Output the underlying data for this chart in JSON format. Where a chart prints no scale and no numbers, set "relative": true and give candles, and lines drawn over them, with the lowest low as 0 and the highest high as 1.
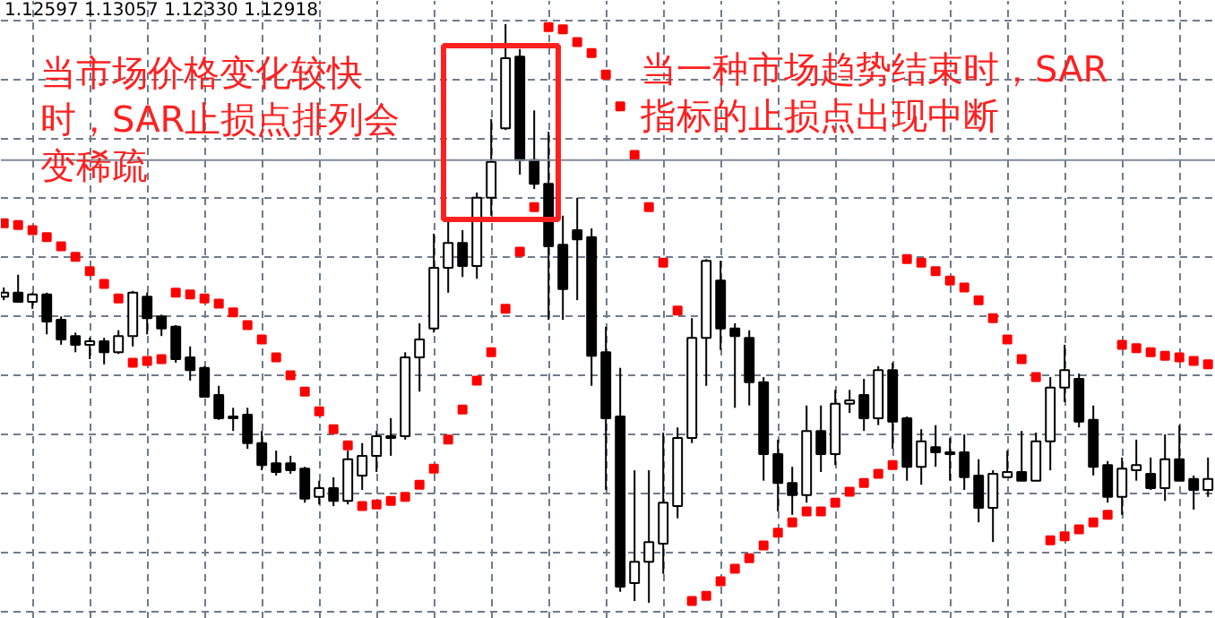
{
  "chart_data": {
    "type": "candlestick",
    "relative": true,
    "grid": true,
    "annotations": [
      "1.12597 1.13057 1.12330 1.12918",
      "当市场价格变化较快时，SAR止损点排列会变稀疏",
      "当一种市场趋势结束时，SAR指标的止损点出现中断"
    ],
    "ref_lines": [
      {
        "axis": "y",
        "value": 0.765,
        "color": "#7f8a96"
      }
    ],
    "categories": [
      null,
      null,
      null,
      null,
      null,
      null,
      null,
      null,
      null,
      null,
      null,
      null,
      null,
      null,
      null,
      null,
      null,
      null,
      null,
      null,
      null,
      null,
      null,
      null,
      null,
      null,
      null,
      null,
      null,
      null,
      null,
      null,
      null,
      null,
      null,
      null,
      null,
      null,
      null,
      null,
      null,
      null,
      null,
      null,
      null,
      null,
      null,
      null,
      null,
      null,
      null,
      null,
      null,
      null,
      null,
      null,
      null,
      null,
      null,
      null,
      null,
      null,
      null,
      null,
      null,
      null,
      null,
      null,
      null,
      null,
      null,
      null,
      null,
      null,
      null,
      null,
      null,
      null,
      null,
      null,
      null,
      null,
      null,
      null,
      null
    ],
    "ohlc": [
      [
        0.529,
        0.545,
        0.523,
        0.536
      ],
      [
        0.536,
        0.567,
        0.52,
        0.52
      ],
      [
        0.52,
        0.536,
        0.508,
        0.533
      ],
      [
        0.533,
        0.536,
        0.464,
        0.486
      ],
      [
        0.489,
        0.495,
        0.446,
        0.455
      ],
      [
        0.461,
        0.467,
        0.433,
        0.446
      ],
      [
        0.446,
        0.458,
        0.421,
        0.452
      ],
      [
        0.452,
        0.458,
        0.412,
        0.433
      ],
      [
        0.433,
        0.471,
        0.43,
        0.461
      ],
      [
        0.461,
        0.539,
        0.443,
        0.536
      ],
      [
        0.529,
        0.536,
        0.464,
        0.492
      ],
      [
        0.495,
        0.498,
        0.461,
        0.474
      ],
      [
        0.477,
        0.48,
        0.415,
        0.421
      ],
      [
        0.424,
        0.443,
        0.384,
        0.402
      ],
      [
        0.406,
        0.409,
        0.356,
        0.356
      ],
      [
        0.359,
        0.375,
        0.316,
        0.319
      ],
      [
        0.322,
        0.337,
        0.297,
        0.319
      ],
      [
        0.325,
        0.337,
        0.266,
        0.276
      ],
      [
        0.276,
        0.297,
        0.229,
        0.238
      ],
      [
        0.241,
        0.263,
        0.22,
        0.226
      ],
      [
        0.241,
        0.254,
        0.223,
        0.229
      ],
      [
        0.232,
        0.235,
        0.173,
        0.18
      ],
      [
        0.183,
        0.211,
        0.17,
        0.198
      ],
      [
        0.198,
        0.217,
        0.167,
        0.176
      ],
      [
        0.176,
        0.263,
        0.17,
        0.248
      ],
      [
        0.22,
        0.276,
        0.195,
        0.254
      ],
      [
        0.254,
        0.297,
        0.226,
        0.288
      ],
      [
        0.285,
        0.319,
        0.254,
        0.288
      ],
      [
        0.288,
        0.433,
        0.282,
        0.424
      ],
      [
        0.424,
        0.483,
        0.365,
        0.455
      ],
      [
        0.474,
        0.638,
        0.467,
        0.579
      ],
      [
        0.579,
        0.659,
        0.536,
        0.622
      ],
      [
        0.622,
        0.644,
        0.563,
        0.582
      ],
      [
        0.582,
        0.709,
        0.56,
        0.7
      ],
      [
        0.7,
        0.836,
        0.669,
        0.762
      ],
      [
        0.82,
        1.0,
        0.817,
        0.941
      ],
      [
        0.944,
        0.957,
        0.74,
        0.765
      ],
      [
        0.765,
        0.851,
        0.715,
        0.724
      ],
      [
        0.724,
        0.814,
        0.489,
        0.616
      ],
      [
        0.619,
        0.669,
        0.489,
        0.542
      ],
      [
        0.644,
        0.7,
        0.523,
        0.628
      ],
      [
        0.632,
        0.647,
        0.375,
        0.427
      ],
      [
        0.433,
        0.477,
        0.195,
        0.319
      ],
      [
        0.322,
        0.406,
        0.019,
        0.028
      ],
      [
        0.034,
        0.229,
        0.003,
        0.071
      ],
      [
        0.071,
        0.229,
        0.0,
        0.105
      ],
      [
        0.102,
        0.294,
        0.05,
        0.173
      ],
      [
        0.167,
        0.303,
        0.146,
        0.285
      ],
      [
        0.285,
        0.492,
        0.276,
        0.458
      ],
      [
        0.458,
        0.594,
        0.375,
        0.591
      ],
      [
        0.557,
        0.591,
        0.437,
        0.474
      ],
      [
        0.474,
        0.483,
        0.337,
        0.461
      ],
      [
        0.458,
        0.471,
        0.341,
        0.381
      ],
      [
        0.381,
        0.39,
        0.211,
        0.257
      ],
      [
        0.257,
        0.282,
        0.158,
        0.207
      ],
      [
        0.207,
        0.235,
        0.152,
        0.186
      ],
      [
        0.186,
        0.341,
        0.173,
        0.297
      ],
      [
        0.297,
        0.341,
        0.226,
        0.257
      ],
      [
        0.257,
        0.368,
        0.238,
        0.344
      ],
      [
        0.344,
        0.368,
        0.328,
        0.35
      ],
      [
        0.359,
        0.387,
        0.297,
        0.319
      ],
      [
        0.319,
        0.409,
        0.307,
        0.402
      ],
      [
        0.402,
        0.415,
        0.266,
        0.313
      ],
      [
        0.319,
        0.322,
        0.211,
        0.235
      ],
      [
        0.235,
        0.3,
        0.204,
        0.279
      ],
      [
        0.269,
        0.307,
        0.235,
        0.26
      ],
      [
        0.26,
        0.285,
        0.211,
        0.257
      ],
      [
        0.26,
        0.291,
        0.195,
        0.217
      ],
      [
        0.22,
        0.248,
        0.139,
        0.164
      ],
      [
        0.164,
        0.229,
        0.105,
        0.223
      ],
      [
        0.217,
        0.263,
        0.217,
        0.226
      ],
      [
        0.226,
        0.297,
        0.211,
        0.211
      ],
      [
        0.211,
        0.294,
        0.211,
        0.279
      ],
      [
        0.279,
        0.39,
        0.229,
        0.372
      ],
      [
        0.372,
        0.446,
        0.347,
        0.402
      ],
      [
        0.387,
        0.396,
        0.303,
        0.313
      ],
      [
        0.316,
        0.341,
        0.22,
        0.235
      ],
      [
        0.238,
        0.245,
        0.173,
        0.183
      ],
      [
        0.183,
        0.251,
        0.152,
        0.232
      ],
      [
        0.229,
        0.282,
        0.211,
        0.238
      ],
      [
        0.223,
        0.251,
        0.195,
        0.198
      ],
      [
        0.198,
        0.291,
        0.176,
        0.248
      ],
      [
        0.248,
        0.307,
        0.211,
        0.211
      ],
      [
        0.214,
        0.22,
        0.161,
        0.195
      ],
      [
        0.195,
        0.251,
        0.183,
        0.214
      ]
    ],
    "series": [
      {
        "type": "scatter",
        "color": "#ff0000",
        "marker": "square",
        "values": [
          0.656,
          0.653,
          0.644,
          0.632,
          0.616,
          0.598,
          0.573,
          0.551,
          0.526,
          0.415,
          0.418,
          0.421,
          0.536,
          0.533,
          0.526,
          0.517,
          0.502,
          0.48,
          0.455,
          0.424,
          0.393,
          0.365,
          0.331,
          0.3,
          0.272,
          0.167,
          0.17,
          0.176,
          0.183,
          0.204,
          0.232,
          0.282,
          0.334,
          0.384,
          0.433,
          0.508,
          0.607,
          0.684,
          0.995,
          0.991,
          0.969,
          0.95,
          0.913,
          0.858,
          0.774,
          0.684,
          0.588,
          0.505,
          0.003,
          0.012,
          0.037,
          0.059,
          0.077,
          0.099,
          0.121,
          0.139,
          0.158,
          0.158,
          0.173,
          0.192,
          0.207,
          0.223,
          0.238,
          0.594,
          0.588,
          0.573,
          0.557,
          0.545,
          0.523,
          0.492,
          0.455,
          0.421,
          0.39,
          0.108,
          0.115,
          0.127,
          0.139,
          0.152,
          0.446,
          0.44,
          0.433,
          0.427,
          0.424,
          0.418,
          0.412
        ]
      }
    ]
  }
}
